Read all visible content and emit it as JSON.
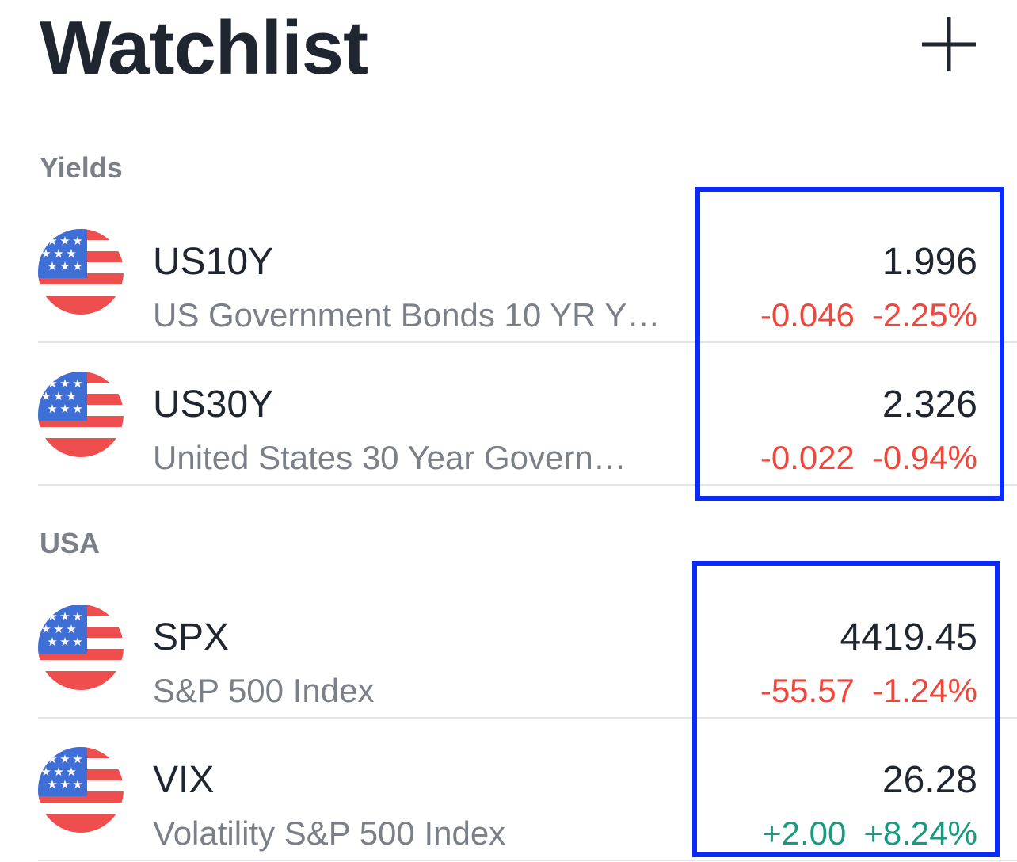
{
  "header": {
    "title": "Watchlist",
    "add_icon": "plus-icon"
  },
  "sections": [
    {
      "title": "Yields",
      "rows": [
        {
          "symbol": "US10Y",
          "description": "US Government Bonds 10 YR Y…",
          "price": "1.996",
          "change": "-0.046",
          "change_percent": "-2.25%",
          "direction": "down",
          "flag_icon": "us-flag-icon"
        },
        {
          "symbol": "US30Y",
          "description": "United States 30 Year Govern…",
          "price": "2.326",
          "change": "-0.022",
          "change_percent": "-0.94%",
          "direction": "down",
          "flag_icon": "us-flag-icon"
        }
      ]
    },
    {
      "title": "USA",
      "rows": [
        {
          "symbol": "SPX",
          "description": "S&P 500 Index",
          "price": "4419.45",
          "change": "-55.57",
          "change_percent": "-1.24%",
          "direction": "down",
          "flag_icon": "us-flag-icon"
        },
        {
          "symbol": "VIX",
          "description": "Volatility S&P 500 Index",
          "price": "26.28",
          "change": "+2.00",
          "change_percent": "+8.24%",
          "direction": "up",
          "flag_icon": "us-flag-icon"
        }
      ]
    }
  ],
  "colors": {
    "negative": "#f0473d",
    "positive": "#189a7e",
    "highlight": "#0a2bff"
  }
}
